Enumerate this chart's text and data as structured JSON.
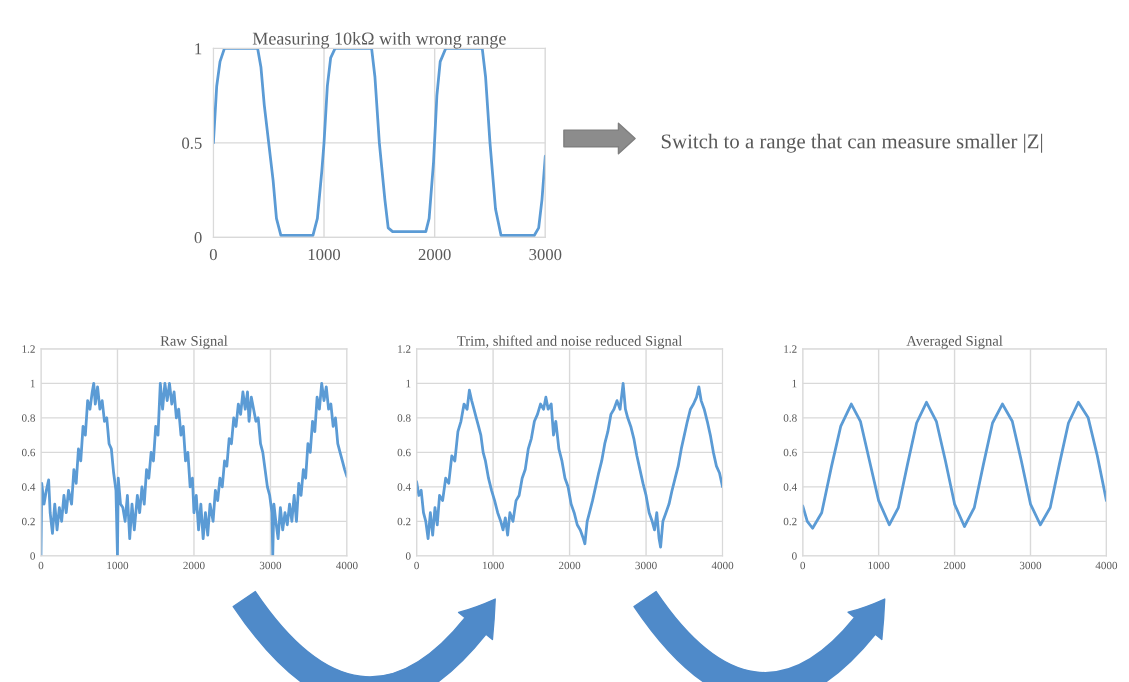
{
  "chart_data": [
    {
      "type": "line",
      "title": "Measuring 10kΩ with wrong range",
      "xlim": [
        0,
        3000
      ],
      "ylim": [
        0,
        1
      ],
      "xticks": [
        0,
        1000,
        2000,
        3000
      ],
      "yticks": [
        0,
        0.5,
        1
      ],
      "grid": true,
      "annotations": [
        "Switch to a range that can measure smaller |Z|"
      ],
      "series": [
        {
          "color": "#5b9bd5",
          "x": [
            0,
            30,
            60,
            100,
            400,
            430,
            460,
            500,
            540,
            570,
            610,
            900,
            940,
            980,
            1000,
            1030,
            1060,
            1100,
            1430,
            1460,
            1500,
            1550,
            1580,
            1620,
            1920,
            1950,
            1990,
            2020,
            2050,
            2100,
            2430,
            2460,
            2500,
            2550,
            2600,
            2900,
            2940,
            2970,
            3000
          ],
          "values": [
            0.5,
            0.8,
            0.93,
            1,
            1,
            0.9,
            0.7,
            0.5,
            0.3,
            0.1,
            0.01,
            0.01,
            0.1,
            0.35,
            0.5,
            0.8,
            0.95,
            1,
            1,
            0.85,
            0.5,
            0.2,
            0.05,
            0.03,
            0.03,
            0.1,
            0.4,
            0.75,
            0.93,
            1,
            1,
            0.85,
            0.5,
            0.15,
            0.01,
            0.01,
            0.05,
            0.2,
            0.43
          ]
        }
      ]
    },
    {
      "type": "line",
      "title": "Raw Signal",
      "xlim": [
        0,
        4000
      ],
      "ylim": [
        0,
        1.2
      ],
      "xticks": [
        0,
        1000,
        2000,
        3000,
        4000
      ],
      "yticks": [
        0,
        0.2,
        0.4,
        0.6,
        0.8,
        1,
        1.2
      ],
      "grid": true,
      "series": [
        {
          "color": "#5b9bd5",
          "x": [
            0,
            10,
            40,
            70,
            100,
            120,
            150,
            180,
            210,
            240,
            270,
            300,
            330,
            360,
            400,
            430,
            460,
            490,
            520,
            550,
            580,
            610,
            640,
            670,
            690,
            710,
            740,
            770,
            800,
            830,
            860,
            890,
            920,
            950,
            980,
            1000,
            1010,
            1040,
            1070,
            1100,
            1130,
            1160,
            1190,
            1220,
            1260,
            1290,
            1320,
            1350,
            1380,
            1410,
            1440,
            1470,
            1500,
            1530,
            1560,
            1590,
            1620,
            1650,
            1680,
            1710,
            1740,
            1770,
            1800,
            1830,
            1860,
            1890,
            1920,
            1950,
            1980,
            2000,
            2030,
            2060,
            2090,
            2120,
            2150,
            2180,
            2210,
            2250,
            2280,
            2310,
            2340,
            2370,
            2400,
            2430,
            2460,
            2490,
            2520,
            2550,
            2580,
            2610,
            2640,
            2670,
            2700,
            2720,
            2750,
            2780,
            2810,
            2840,
            2870,
            2900,
            2930,
            2960,
            2990,
            3020,
            3030,
            3045,
            3070,
            3100,
            3130,
            3160,
            3190,
            3220,
            3250,
            3280,
            3310,
            3340,
            3370,
            3400,
            3430,
            3460,
            3490,
            3520,
            3550,
            3580,
            3610,
            3640,
            3670,
            3700,
            3730,
            3760,
            3790,
            3820,
            3850,
            3880,
            3910,
            3940,
            3970,
            4000
          ],
          "values": [
            0.0,
            0.42,
            0.3,
            0.38,
            0.44,
            0.25,
            0.13,
            0.3,
            0.15,
            0.28,
            0.2,
            0.35,
            0.25,
            0.38,
            0.3,
            0.5,
            0.42,
            0.62,
            0.55,
            0.75,
            0.7,
            0.9,
            0.85,
            0.95,
            1.0,
            0.88,
            0.98,
            0.85,
            0.9,
            0.78,
            0.8,
            0.65,
            0.62,
            0.48,
            0.38,
            0.0,
            0.45,
            0.3,
            0.28,
            0.2,
            0.35,
            0.1,
            0.3,
            0.15,
            0.35,
            0.25,
            0.4,
            0.3,
            0.5,
            0.45,
            0.6,
            0.55,
            0.75,
            0.7,
            1.0,
            0.85,
            1.0,
            0.9,
            1.0,
            0.88,
            0.95,
            0.8,
            0.85,
            0.7,
            0.75,
            0.55,
            0.6,
            0.4,
            0.45,
            0.25,
            0.35,
            0.15,
            0.3,
            0.1,
            0.25,
            0.12,
            0.3,
            0.2,
            0.38,
            0.32,
            0.45,
            0.4,
            0.55,
            0.52,
            0.68,
            0.65,
            0.8,
            0.75,
            0.88,
            0.82,
            0.95,
            0.85,
            0.95,
            0.78,
            0.92,
            0.85,
            0.78,
            0.8,
            0.65,
            0.6,
            0.5,
            0.4,
            0.35,
            0.25,
            0.0,
            0.3,
            0.2,
            0.1,
            0.28,
            0.15,
            0.25,
            0.18,
            0.3,
            0.2,
            0.35,
            0.2,
            0.42,
            0.35,
            0.5,
            0.45,
            0.65,
            0.6,
            0.78,
            0.72,
            0.92,
            0.85,
            1.0,
            0.9,
            0.98,
            0.85,
            0.88,
            0.75,
            0.8,
            0.65,
            0.6,
            0.55,
            0.5,
            0.46
          ]
        }
      ]
    },
    {
      "type": "line",
      "title": "Trim, shifted and noise reduced Signal",
      "xlim": [
        0,
        4000
      ],
      "ylim": [
        0,
        1.2
      ],
      "xticks": [
        0,
        1000,
        2000,
        3000,
        4000
      ],
      "yticks": [
        0,
        0.2,
        0.4,
        0.6,
        0.8,
        1,
        1.2
      ],
      "grid": true,
      "series": [
        {
          "color": "#5b9bd5",
          "x": [
            0,
            30,
            60,
            90,
            120,
            150,
            180,
            210,
            240,
            270,
            300,
            340,
            380,
            420,
            460,
            500,
            540,
            580,
            620,
            660,
            690,
            720,
            750,
            780,
            810,
            840,
            870,
            900,
            940,
            980,
            1020,
            1060,
            1100,
            1130,
            1160,
            1190,
            1220,
            1260,
            1300,
            1340,
            1380,
            1420,
            1460,
            1500,
            1540,
            1580,
            1620,
            1660,
            1690,
            1720,
            1760,
            1790,
            1820,
            1860,
            1900,
            1940,
            1980,
            2020,
            2060,
            2100,
            2140,
            2180,
            2200,
            2230,
            2260,
            2300,
            2340,
            2380,
            2420,
            2460,
            2500,
            2540,
            2580,
            2620,
            2660,
            2700,
            2730,
            2760,
            2800,
            2840,
            2880,
            2920,
            2960,
            3000,
            3040,
            3080,
            3110,
            3140,
            3170,
            3190,
            3220,
            3260,
            3300,
            3340,
            3380,
            3420,
            3460,
            3500,
            3540,
            3580,
            3620,
            3660,
            3690,
            3720,
            3760,
            3800,
            3840,
            3880,
            3920,
            3960,
            4000
          ],
          "values": [
            0.43,
            0.35,
            0.38,
            0.25,
            0.2,
            0.1,
            0.25,
            0.12,
            0.28,
            0.18,
            0.35,
            0.32,
            0.45,
            0.42,
            0.58,
            0.55,
            0.72,
            0.78,
            0.88,
            0.85,
            0.96,
            0.9,
            0.85,
            0.8,
            0.75,
            0.7,
            0.6,
            0.55,
            0.45,
            0.38,
            0.32,
            0.25,
            0.2,
            0.15,
            0.22,
            0.12,
            0.25,
            0.2,
            0.32,
            0.35,
            0.45,
            0.5,
            0.62,
            0.68,
            0.78,
            0.82,
            0.88,
            0.85,
            0.92,
            0.85,
            0.88,
            0.7,
            0.78,
            0.62,
            0.55,
            0.45,
            0.4,
            0.3,
            0.25,
            0.18,
            0.15,
            0.1,
            0.07,
            0.2,
            0.25,
            0.32,
            0.4,
            0.48,
            0.55,
            0.65,
            0.72,
            0.82,
            0.85,
            0.9,
            0.85,
            1.0,
            0.85,
            0.8,
            0.75,
            0.68,
            0.58,
            0.5,
            0.42,
            0.35,
            0.25,
            0.2,
            0.15,
            0.25,
            0.1,
            0.05,
            0.2,
            0.25,
            0.3,
            0.38,
            0.45,
            0.52,
            0.62,
            0.7,
            0.78,
            0.85,
            0.88,
            0.92,
            0.98,
            0.9,
            0.85,
            0.78,
            0.7,
            0.6,
            0.52,
            0.48,
            0.4
          ]
        }
      ]
    },
    {
      "type": "line",
      "title": "Averaged Signal",
      "xlim": [
        0,
        4000
      ],
      "ylim": [
        0,
        1.2
      ],
      "xticks": [
        0,
        1000,
        2000,
        3000,
        4000
      ],
      "yticks": [
        0,
        0.2,
        0.4,
        0.6,
        0.8,
        1,
        1.2
      ],
      "grid": true,
      "series": [
        {
          "color": "#5b9bd5",
          "x": [
            0,
            60,
            130,
            250,
            380,
            500,
            640,
            760,
            880,
            1000,
            1140,
            1260,
            1380,
            1500,
            1630,
            1760,
            1880,
            2000,
            2130,
            2260,
            2380,
            2500,
            2630,
            2760,
            2880,
            3000,
            3130,
            3260,
            3380,
            3500,
            3630,
            3760,
            3880,
            4000
          ],
          "values": [
            0.29,
            0.2,
            0.16,
            0.25,
            0.52,
            0.75,
            0.88,
            0.78,
            0.55,
            0.32,
            0.18,
            0.28,
            0.53,
            0.77,
            0.89,
            0.78,
            0.55,
            0.3,
            0.17,
            0.28,
            0.53,
            0.77,
            0.88,
            0.78,
            0.55,
            0.3,
            0.18,
            0.28,
            0.53,
            0.77,
            0.89,
            0.8,
            0.58,
            0.32
          ]
        }
      ]
    }
  ]
}
